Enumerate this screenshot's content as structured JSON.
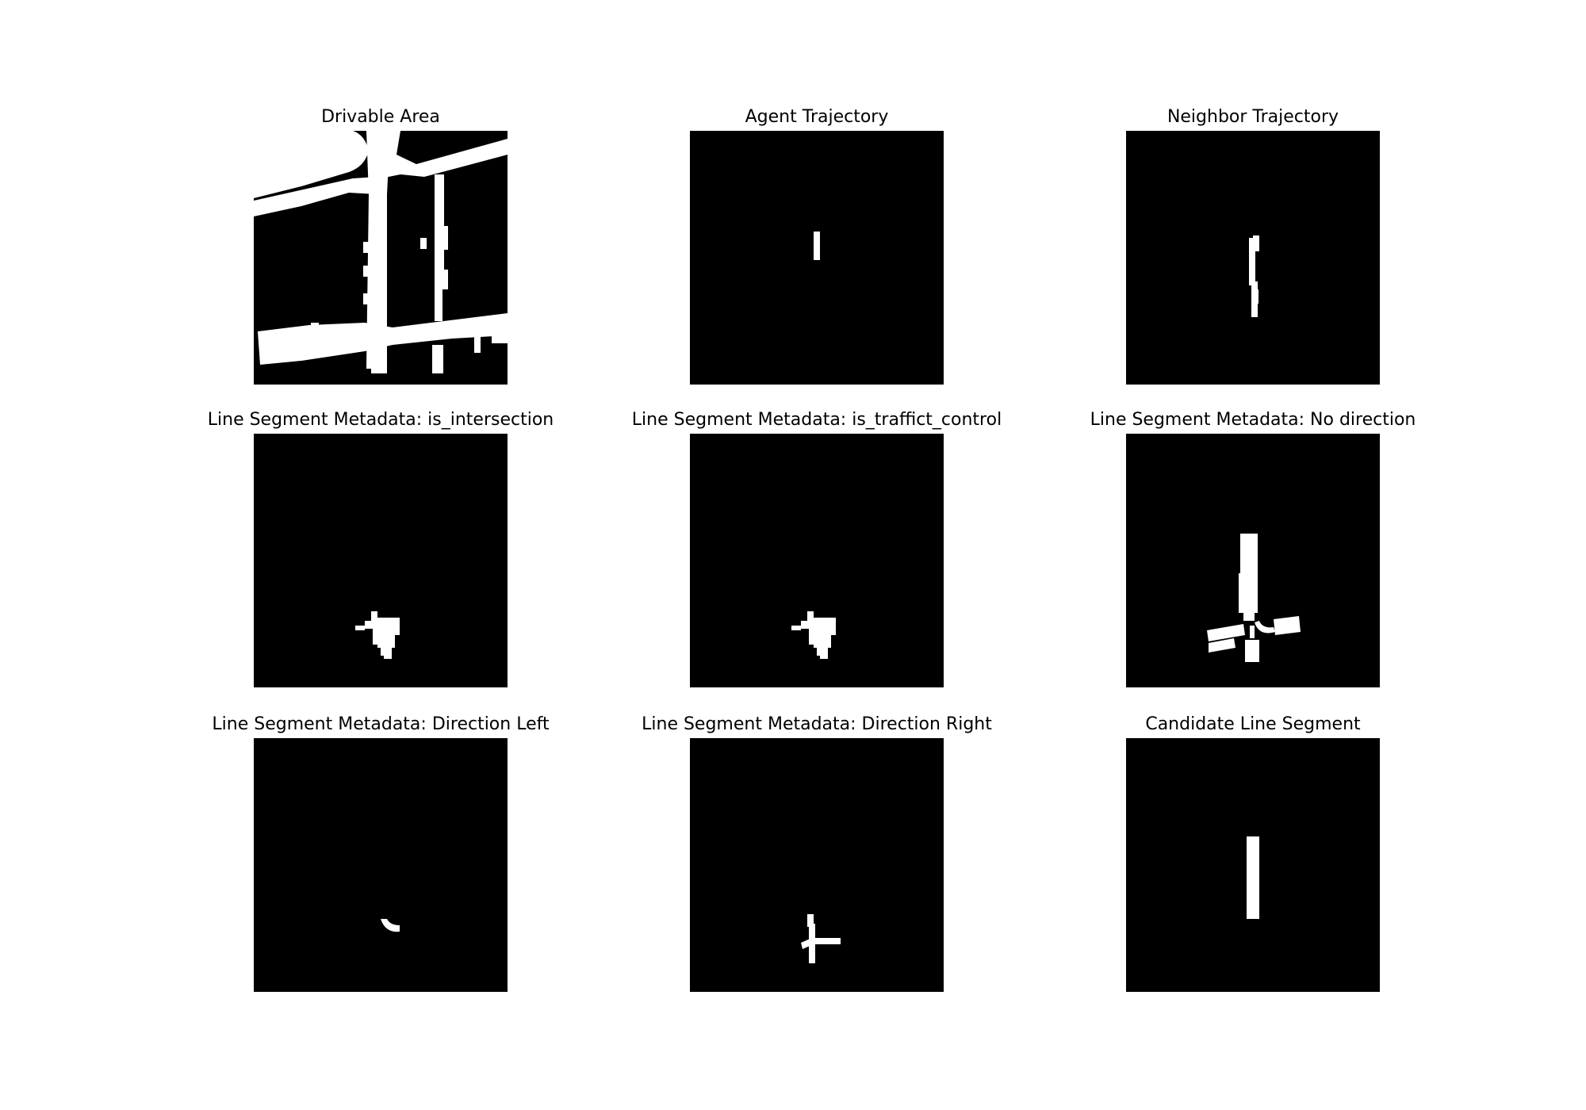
{
  "figure": {
    "panels": [
      {
        "title": "Drivable Area"
      },
      {
        "title": "Agent Trajectory"
      },
      {
        "title": "Neighbor Trajectory"
      },
      {
        "title": "Line Segment Metadata: is_intersection"
      },
      {
        "title": "Line Segment Metadata: is_traffict_control"
      },
      {
        "title": "Line Segment Metadata: No direction"
      },
      {
        "title": "Line Segment Metadata: Direction Left"
      },
      {
        "title": "Line Segment Metadata: Direction Right"
      },
      {
        "title": "Candidate Line Segment"
      }
    ],
    "colors": {
      "background": "#000000",
      "foreground": "#ffffff"
    }
  }
}
